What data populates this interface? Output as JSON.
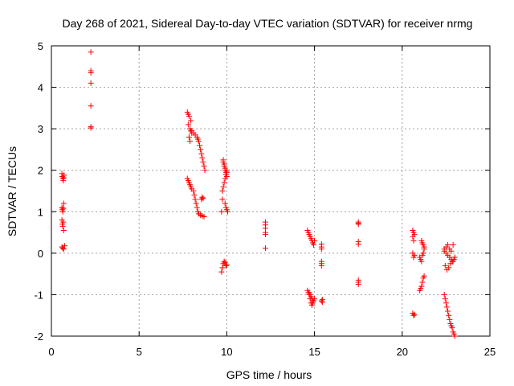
{
  "chart_data": {
    "type": "scatter",
    "title": "Day 268 of 2021, Sidereal Day-to-day VTEC variation (SDTVAR) for receiver nrmg",
    "xlabel": "GPS time / hours",
    "ylabel": "SDTVAR / TECUs",
    "xlim": [
      0,
      25
    ],
    "ylim": [
      -2,
      5
    ],
    "xticks": [
      "0",
      "5",
      "10",
      "15",
      "20",
      "25"
    ],
    "yticks": [
      "-2",
      "-1",
      "0",
      "1",
      "2",
      "3",
      "4",
      "5"
    ],
    "grid": true,
    "marker": "+",
    "color": "#ff0000",
    "series": [
      {
        "name": "SDTVAR",
        "x": [
          0.6,
          0.62,
          0.65,
          0.68,
          0.7,
          0.72,
          0.6,
          0.62,
          0.65,
          0.68,
          0.7,
          0.6,
          0.62,
          0.65,
          0.68,
          0.7,
          0.6,
          0.65,
          0.7,
          0.75,
          2.25,
          2.25,
          2.25,
          2.25,
          2.25,
          2.25,
          2.25,
          7.75,
          7.8,
          7.85,
          7.9,
          7.95,
          8.0,
          7.8,
          7.85,
          7.9,
          7.95,
          8.0,
          8.1,
          8.2,
          8.3,
          8.35,
          8.4,
          8.45,
          8.5,
          8.55,
          8.6,
          8.65,
          8.7,
          8.75,
          7.75,
          7.8,
          7.85,
          7.9,
          7.95,
          8.0,
          8.1,
          8.15,
          8.2,
          8.25,
          8.3,
          8.35,
          8.4,
          8.5,
          8.6,
          8.7,
          8.55,
          8.6,
          8.65,
          9.7,
          9.75,
          9.8,
          9.85,
          9.9,
          9.95,
          10.0,
          9.75,
          9.8,
          9.85,
          9.9,
          9.95,
          10.0,
          9.8,
          9.85,
          9.9,
          9.95,
          10.0,
          9.9,
          9.95,
          10.0,
          9.7,
          9.75,
          9.8,
          9.85,
          9.9,
          9.95,
          10.0,
          10.05,
          12.2,
          12.2,
          12.2,
          12.2,
          12.2,
          12.2,
          14.6,
          14.65,
          14.7,
          14.75,
          14.8,
          14.85,
          14.9,
          14.95,
          15.0,
          14.7,
          14.75,
          14.8,
          14.85,
          14.9,
          14.6,
          14.65,
          14.7,
          14.75,
          14.8,
          14.85,
          14.9,
          14.95,
          15.0,
          15.4,
          15.4,
          15.4,
          15.4,
          15.4,
          15.4,
          15.45,
          15.45,
          15.4,
          17.5,
          17.5,
          17.5,
          17.5,
          17.5,
          17.5,
          17.5,
          17.5,
          20.6,
          20.65,
          20.7,
          20.6,
          20.65,
          20.7,
          20.6,
          20.65,
          20.6,
          20.65,
          20.7,
          21.0,
          21.05,
          21.1,
          21.15,
          21.2,
          21.25,
          21.1,
          21.15,
          21.2,
          21.25,
          21.0,
          21.05,
          21.1,
          21.15,
          21.2,
          21.25,
          22.4,
          22.45,
          22.5,
          22.55,
          22.6,
          22.65,
          22.7,
          22.75,
          22.8,
          22.85,
          22.9,
          22.95,
          23.0,
          22.4,
          22.5,
          22.6,
          22.7,
          22.8,
          22.9,
          23.0,
          22.45,
          22.55,
          22.65,
          22.75,
          22.85,
          22.95,
          22.4,
          22.5,
          22.6,
          22.7,
          22.8,
          22.9
        ],
        "y": [
          1.92,
          1.85,
          1.8,
          1.75,
          1.82,
          1.88,
          1.1,
          1.05,
          1.0,
          1.08,
          1.2,
          0.8,
          0.7,
          0.65,
          0.75,
          0.55,
          0.15,
          0.12,
          0.1,
          0.18,
          4.85,
          4.4,
          4.35,
          4.1,
          3.55,
          3.05,
          3.02,
          3.4,
          3.35,
          3.3,
          3.0,
          2.95,
          2.9,
          3.1,
          2.8,
          2.7,
          3.2,
          2.95,
          2.9,
          2.85,
          2.8,
          2.75,
          2.7,
          2.6,
          2.5,
          2.4,
          2.3,
          2.2,
          2.1,
          2.0,
          1.8,
          1.75,
          1.7,
          1.65,
          1.6,
          1.55,
          1.5,
          1.4,
          1.3,
          1.2,
          1.1,
          1.0,
          0.95,
          0.92,
          0.9,
          0.88,
          1.3,
          1.35,
          1.32,
          -0.45,
          -0.35,
          -0.25,
          -0.2,
          -0.22,
          -0.3,
          -0.28,
          1.5,
          1.6,
          1.7,
          1.8,
          1.9,
          2.0,
          2.2,
          2.1,
          2.0,
          1.9,
          1.85,
          1.2,
          1.1,
          1.05,
          1.0,
          1.3,
          2.25,
          2.15,
          2.05,
          1.95,
          1.95,
          1.0,
          0.75,
          0.68,
          0.6,
          0.5,
          0.45,
          0.12,
          0.55,
          0.5,
          0.45,
          0.4,
          0.35,
          0.3,
          0.25,
          0.2,
          0.3,
          -0.95,
          -1.0,
          -1.05,
          -1.1,
          -1.15,
          -0.9,
          -0.95,
          -1.0,
          -1.1,
          -1.2,
          -1.25,
          -1.2,
          -1.15,
          -1.1,
          0.22,
          0.15,
          -0.2,
          -0.25,
          -0.3,
          -1.15,
          -1.18,
          -1.12,
          0.1,
          0.75,
          0.72,
          0.7,
          0.28,
          0.22,
          -0.65,
          -0.7,
          -0.75,
          0.55,
          0.5,
          0.45,
          0.4,
          0.3,
          -0.05,
          0.0,
          -0.1,
          -1.45,
          -1.5,
          -1.48,
          -0.9,
          -0.85,
          -0.8,
          -0.7,
          -0.6,
          -0.55,
          0.3,
          0.25,
          0.2,
          0.15,
          -0.1,
          -0.15,
          -0.2,
          -0.05,
          0.0,
          0.1,
          -1.0,
          -1.1,
          -1.2,
          -1.3,
          -1.4,
          -1.5,
          -1.6,
          -1.7,
          -1.75,
          -1.8,
          -1.9,
          -1.95,
          -2.0,
          0.05,
          0.0,
          -0.05,
          -0.1,
          -0.15,
          -0.2,
          -0.1,
          -0.3,
          -0.4,
          -0.35,
          -0.25,
          -0.2,
          -0.15,
          0.1,
          0.15,
          0.2,
          0.1,
          0.05,
          0.2
        ]
      }
    ]
  }
}
